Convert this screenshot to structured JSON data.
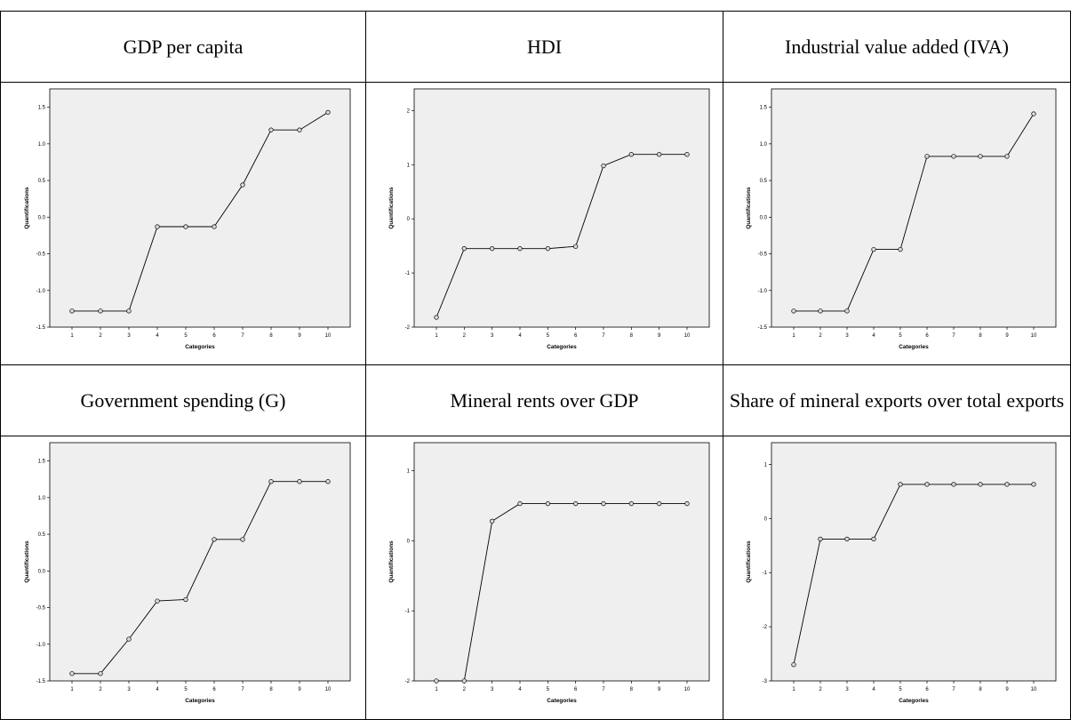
{
  "colors": {
    "plot_background": "#efefef",
    "line": "#000000",
    "marker_fill": "#d9d9d9"
  },
  "chart_data": [
    {
      "type": "line",
      "title": "GDP per capita",
      "xlabel": "Categories",
      "ylabel": "Quantifications",
      "x": [
        1,
        2,
        3,
        4,
        5,
        6,
        7,
        8,
        9,
        10
      ],
      "series": [
        {
          "values": [
            -1.28,
            -1.28,
            -1.28,
            -0.13,
            -0.13,
            -0.13,
            0.44,
            1.19,
            1.19,
            1.43
          ]
        }
      ],
      "ylim": [
        -1.5,
        1.75
      ],
      "yticks": [
        {
          "v": -1.5,
          "label": "-1.5"
        },
        {
          "v": -1.0,
          "label": "-1.0"
        },
        {
          "v": -0.5,
          "label": "-0.5"
        },
        {
          "v": 0.0,
          "label": "0.0"
        },
        {
          "v": 0.5,
          "label": "0.5"
        },
        {
          "v": 1.0,
          "label": "1.0"
        },
        {
          "v": 1.5,
          "label": "1.5"
        }
      ],
      "xticks": [
        "1",
        "2",
        "3",
        "4",
        "5",
        "6",
        "7",
        "8",
        "9",
        "10"
      ]
    },
    {
      "type": "line",
      "title": "HDI",
      "xlabel": "Categories",
      "ylabel": "Quantifications",
      "x": [
        1,
        2,
        3,
        4,
        5,
        6,
        7,
        8,
        9,
        10
      ],
      "series": [
        {
          "values": [
            -1.82,
            -0.55,
            -0.55,
            -0.55,
            -0.55,
            -0.51,
            0.98,
            1.19,
            1.19,
            1.19
          ]
        }
      ],
      "ylim": [
        -2,
        2.4
      ],
      "yticks": [
        {
          "v": -2,
          "label": "-2"
        },
        {
          "v": -1,
          "label": "-1"
        },
        {
          "v": 0,
          "label": "0"
        },
        {
          "v": 1,
          "label": "1"
        },
        {
          "v": 2,
          "label": "2"
        }
      ],
      "xticks": [
        "1",
        "2",
        "3",
        "4",
        "5",
        "6",
        "7",
        "8",
        "9",
        "10"
      ]
    },
    {
      "type": "line",
      "title": "Industrial value added (IVA)",
      "xlabel": "Categories",
      "ylabel": "Quantifications",
      "x": [
        1,
        2,
        3,
        4,
        5,
        6,
        7,
        8,
        9,
        10
      ],
      "series": [
        {
          "values": [
            -1.28,
            -1.28,
            -1.28,
            -0.44,
            -0.44,
            0.83,
            0.83,
            0.83,
            0.83,
            1.41
          ]
        }
      ],
      "ylim": [
        -1.5,
        1.75
      ],
      "yticks": [
        {
          "v": -1.5,
          "label": "-1.5"
        },
        {
          "v": -1.0,
          "label": "-1.0"
        },
        {
          "v": -0.5,
          "label": "-0.5"
        },
        {
          "v": 0.0,
          "label": "0.0"
        },
        {
          "v": 0.5,
          "label": "0.5"
        },
        {
          "v": 1.0,
          "label": "1.0"
        },
        {
          "v": 1.5,
          "label": "1.5"
        }
      ],
      "xticks": [
        "1",
        "2",
        "3",
        "4",
        "5",
        "6",
        "7",
        "8",
        "9",
        "10"
      ]
    },
    {
      "type": "line",
      "title": "Government spending (G)",
      "xlabel": "Categories",
      "ylabel": "Quantifications",
      "x": [
        1,
        2,
        3,
        4,
        5,
        6,
        7,
        8,
        9,
        10
      ],
      "series": [
        {
          "values": [
            -1.4,
            -1.4,
            -0.93,
            -0.41,
            -0.39,
            0.43,
            0.43,
            1.22,
            1.22,
            1.22
          ]
        }
      ],
      "ylim": [
        -1.5,
        1.75
      ],
      "yticks": [
        {
          "v": -1.5,
          "label": "-1.5"
        },
        {
          "v": -1.0,
          "label": "-1.0"
        },
        {
          "v": -0.5,
          "label": "-0.5"
        },
        {
          "v": 0.0,
          "label": "0.0"
        },
        {
          "v": 0.5,
          "label": "0.5"
        },
        {
          "v": 1.0,
          "label": "1.0"
        },
        {
          "v": 1.5,
          "label": "1.5"
        }
      ],
      "xticks": [
        "1",
        "2",
        "3",
        "4",
        "5",
        "6",
        "7",
        "8",
        "9",
        "10"
      ]
    },
    {
      "type": "line",
      "title": "Mineral rents over GDP",
      "xlabel": "Categories",
      "ylabel": "Quantifications",
      "x": [
        1,
        2,
        3,
        4,
        5,
        6,
        7,
        8,
        9,
        10
      ],
      "series": [
        {
          "values": [
            -2.0,
            -2.0,
            0.28,
            0.53,
            0.53,
            0.53,
            0.53,
            0.53,
            0.53,
            0.53
          ]
        }
      ],
      "ylim": [
        -2,
        1.4
      ],
      "yticks": [
        {
          "v": -2,
          "label": "-2"
        },
        {
          "v": -1,
          "label": "-1"
        },
        {
          "v": 0,
          "label": "0"
        },
        {
          "v": 1,
          "label": "1"
        }
      ],
      "xticks": [
        "1",
        "2",
        "3",
        "4",
        "5",
        "6",
        "7",
        "8",
        "9",
        "10"
      ]
    },
    {
      "type": "line",
      "title": "Share of mineral exports over total exports",
      "xlabel": "Categories",
      "ylabel": "Quantifications",
      "x": [
        1,
        2,
        3,
        4,
        5,
        6,
        7,
        8,
        9,
        10
      ],
      "series": [
        {
          "values": [
            -2.7,
            -0.38,
            -0.38,
            -0.38,
            0.63,
            0.63,
            0.63,
            0.63,
            0.63,
            0.63
          ]
        }
      ],
      "ylim": [
        -3,
        1.4
      ],
      "yticks": [
        {
          "v": -3,
          "label": "-3"
        },
        {
          "v": -2,
          "label": "-2"
        },
        {
          "v": -1,
          "label": "-1"
        },
        {
          "v": 0,
          "label": "0"
        },
        {
          "v": 1,
          "label": "1"
        }
      ],
      "xticks": [
        "1",
        "2",
        "3",
        "4",
        "5",
        "6",
        "7",
        "8",
        "9",
        "10"
      ]
    }
  ]
}
